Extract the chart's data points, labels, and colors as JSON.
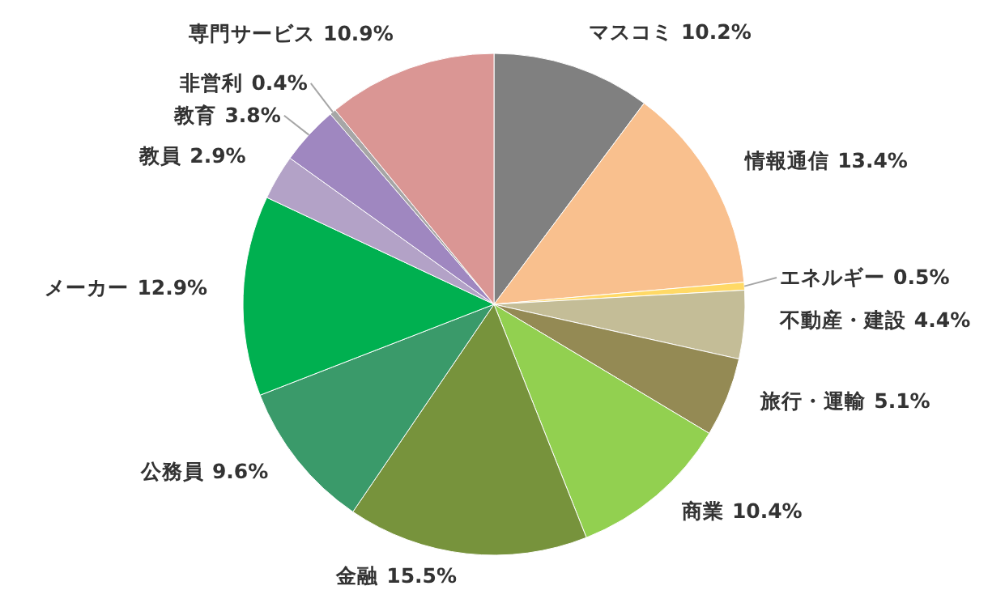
{
  "chart_data": {
    "type": "pie",
    "categories": [
      "マスコミ",
      "情報通信",
      "エネルギー",
      "不動産・建設",
      "旅行・運輸",
      "商業",
      "金融",
      "公務員",
      "メーカー",
      "教員",
      "教育",
      "非営利",
      "専門サービス"
    ],
    "values": [
      10.2,
      13.4,
      0.5,
      4.4,
      5.1,
      10.4,
      15.5,
      9.6,
      12.9,
      2.9,
      3.8,
      0.4,
      10.9
    ],
    "colors": [
      "#808080",
      "#f9c08e",
      "#ffd966",
      "#c4bd97",
      "#948a54",
      "#92d050",
      "#77933c",
      "#3a9a6a",
      "#00b050",
      "#b3a2c7",
      "#9f87c0",
      "#a6a6a6",
      "#da9694"
    ],
    "value_labels": [
      "10.2%",
      "13.4%",
      "0.5%",
      "4.4%",
      "5.1%",
      "10.4%",
      "15.5%",
      "9.6%",
      "12.9%",
      "2.9%",
      "3.8%",
      "0.4%",
      "10.9%"
    ]
  }
}
